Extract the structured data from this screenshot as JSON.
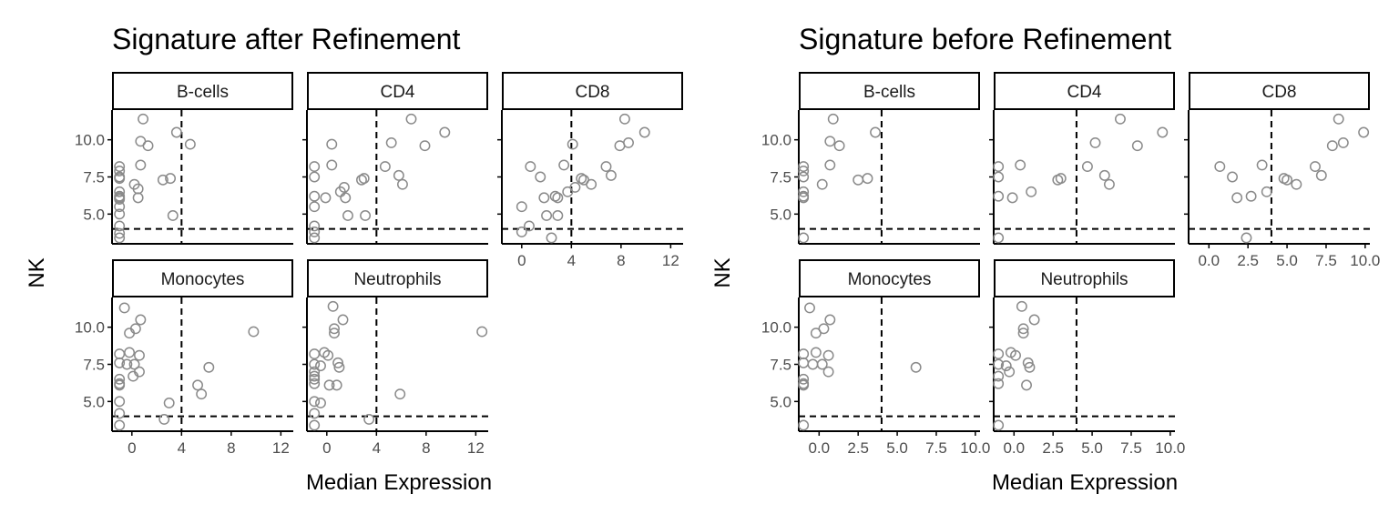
{
  "shared": {
    "ylabel": "NK",
    "xlabel": "Median Expression",
    "ylim": [
      3.0,
      12.0
    ],
    "yticks": [
      5.0,
      7.5,
      10.0
    ],
    "ytick_labels": [
      "5.0",
      "7.5",
      "10.0"
    ],
    "hline_y": 4,
    "vline_x": 4
  },
  "chart_data": [
    {
      "type": "scatter",
      "title": "Signature after Refinement",
      "xlabel": "Median Expression",
      "ylabel": "NK",
      "panels": [
        {
          "label": "B-cells",
          "xlim": [
            -1.6,
            13
          ],
          "points": [
            [
              -1,
              8.2
            ],
            [
              -1,
              7.9
            ],
            [
              -1,
              7.5
            ],
            [
              -1,
              7.4
            ],
            [
              -1,
              6.5
            ],
            [
              -1,
              6.2
            ],
            [
              -1,
              6.1
            ],
            [
              -1,
              6.0
            ],
            [
              -1,
              5.5
            ],
            [
              -1,
              5.0
            ],
            [
              -1,
              4.2
            ],
            [
              -1,
              3.7
            ],
            [
              -1,
              3.4
            ],
            [
              0.2,
              7.0
            ],
            [
              0.5,
              6.7
            ],
            [
              0.5,
              6.1
            ],
            [
              0.7,
              8.3
            ],
            [
              0.7,
              9.9
            ],
            [
              0.9,
              11.4
            ],
            [
              1.3,
              9.6
            ],
            [
              2.5,
              7.3
            ],
            [
              3.1,
              7.4
            ],
            [
              3.3,
              4.9
            ],
            [
              3.6,
              10.5
            ],
            [
              4.7,
              9.7
            ]
          ]
        },
        {
          "label": "CD4",
          "xlim": [
            -1.6,
            13
          ],
          "points": [
            [
              -1,
              8.2
            ],
            [
              -1,
              7.5
            ],
            [
              -1,
              6.2
            ],
            [
              -1,
              5.5
            ],
            [
              -1,
              4.2
            ],
            [
              -1,
              3.8
            ],
            [
              -1,
              3.4
            ],
            [
              -0.1,
              6.1
            ],
            [
              0.4,
              8.3
            ],
            [
              0.4,
              9.7
            ],
            [
              1.1,
              6.5
            ],
            [
              1.4,
              6.8
            ],
            [
              1.5,
              6.1
            ],
            [
              1.7,
              4.9
            ],
            [
              2.8,
              7.3
            ],
            [
              3,
              7.4
            ],
            [
              3.1,
              4.9
            ],
            [
              4.7,
              8.2
            ],
            [
              5.2,
              9.8
            ],
            [
              5.8,
              7.6
            ],
            [
              6.1,
              7.0
            ],
            [
              6.8,
              11.4
            ],
            [
              7.9,
              9.6
            ],
            [
              9.5,
              10.5
            ]
          ]
        },
        {
          "label": "CD8",
          "xlim": [
            -1.6,
            13
          ],
          "points": [
            [
              0,
              5.5
            ],
            [
              0,
              3.8
            ],
            [
              0.6,
              4.2
            ],
            [
              0.7,
              8.2
            ],
            [
              1.5,
              7.5
            ],
            [
              1.8,
              6.1
            ],
            [
              2,
              4.9
            ],
            [
              2.4,
              3.4
            ],
            [
              2.7,
              6.2
            ],
            [
              2.9,
              6.1
            ],
            [
              2.9,
              4.9
            ],
            [
              3.4,
              8.3
            ],
            [
              3.7,
              6.5
            ],
            [
              4.1,
              9.7
            ],
            [
              4.3,
              6.8
            ],
            [
              4.8,
              7.4
            ],
            [
              5,
              7.3
            ],
            [
              5.6,
              7.0
            ],
            [
              6.8,
              8.2
            ],
            [
              7.2,
              7.6
            ],
            [
              7.9,
              9.6
            ],
            [
              8.3,
              11.4
            ],
            [
              8.6,
              9.8
            ],
            [
              9.9,
              10.5
            ]
          ]
        },
        {
          "label": "Monocytes",
          "xlim": [
            -1.6,
            13
          ],
          "points": [
            [
              -1,
              8.2
            ],
            [
              -1,
              7.6
            ],
            [
              -1,
              6.5
            ],
            [
              -1,
              6.2
            ],
            [
              -1,
              6.1
            ],
            [
              -1,
              5.0
            ],
            [
              -1,
              4.2
            ],
            [
              -1,
              3.4
            ],
            [
              -0.6,
              11.3
            ],
            [
              -0.4,
              7.5
            ],
            [
              -0.2,
              9.6
            ],
            [
              -0.2,
              8.3
            ],
            [
              0.1,
              6.7
            ],
            [
              0.2,
              7.5
            ],
            [
              0.3,
              9.9
            ],
            [
              0.6,
              8.1
            ],
            [
              0.6,
              7.0
            ],
            [
              0.7,
              10.5
            ],
            [
              2.6,
              3.8
            ],
            [
              3,
              4.9
            ],
            [
              5.3,
              6.1
            ],
            [
              5.6,
              5.5
            ],
            [
              6.2,
              7.3
            ],
            [
              9.8,
              9.7
            ]
          ]
        },
        {
          "label": "Neutrophils",
          "xlim": [
            -1.6,
            13
          ],
          "points": [
            [
              -1,
              8.2
            ],
            [
              -1,
              7.5
            ],
            [
              -1,
              7.0
            ],
            [
              -1,
              6.7
            ],
            [
              -1,
              6.5
            ],
            [
              -1,
              6.2
            ],
            [
              -1,
              5.0
            ],
            [
              -1,
              4.2
            ],
            [
              -1,
              3.4
            ],
            [
              -0.5,
              7.4
            ],
            [
              -0.5,
              4.9
            ],
            [
              -0.2,
              8.3
            ],
            [
              0.1,
              8.1
            ],
            [
              0.2,
              6.1
            ],
            [
              0.5,
              11.4
            ],
            [
              0.6,
              9.9
            ],
            [
              0.6,
              9.6
            ],
            [
              0.8,
              6.1
            ],
            [
              0.9,
              7.6
            ],
            [
              1,
              7.3
            ],
            [
              1.3,
              10.5
            ],
            [
              3.4,
              3.8
            ],
            [
              5.9,
              5.5
            ],
            [
              12.5,
              9.7
            ]
          ]
        }
      ]
    },
    {
      "type": "scatter",
      "title": "Signature before Refinement",
      "xlabel": "Median Expression",
      "ylabel": "NK",
      "panels": [
        {
          "label": "B-cells",
          "xlim": [
            -1.3,
            10.3
          ],
          "points": [
            [
              -1,
              8.2
            ],
            [
              -1,
              7.9
            ],
            [
              -1,
              7.5
            ],
            [
              -1,
              6.5
            ],
            [
              -1,
              6.2
            ],
            [
              -1,
              6.1
            ],
            [
              -1,
              3.4
            ],
            [
              0.2,
              7.0
            ],
            [
              0.7,
              8.3
            ],
            [
              0.7,
              9.9
            ],
            [
              0.9,
              11.4
            ],
            [
              1.3,
              9.6
            ],
            [
              2.5,
              7.3
            ],
            [
              3.1,
              7.4
            ],
            [
              3.6,
              10.5
            ]
          ]
        },
        {
          "label": "CD4",
          "xlim": [
            -1.3,
            10.3
          ],
          "points": [
            [
              -1,
              8.2
            ],
            [
              -1,
              7.5
            ],
            [
              -1,
              6.2
            ],
            [
              -1,
              3.4
            ],
            [
              -0.1,
              6.1
            ],
            [
              0.4,
              8.3
            ],
            [
              1.1,
              6.5
            ],
            [
              2.8,
              7.3
            ],
            [
              3,
              7.4
            ],
            [
              4.7,
              8.2
            ],
            [
              5.2,
              9.8
            ],
            [
              5.8,
              7.6
            ],
            [
              6.1,
              7.0
            ],
            [
              6.8,
              11.4
            ],
            [
              7.9,
              9.6
            ],
            [
              9.5,
              10.5
            ]
          ]
        },
        {
          "label": "CD8",
          "xlim": [
            -1.3,
            10.3
          ],
          "xticks": [
            0,
            2.5,
            5,
            7.5,
            10
          ],
          "xtick_labels": [
            "0.0",
            "2.5",
            "5.0",
            "7.5",
            "10.0"
          ],
          "points": [
            [
              0.7,
              8.2
            ],
            [
              1.5,
              7.5
            ],
            [
              1.8,
              6.1
            ],
            [
              2.4,
              3.4
            ],
            [
              2.7,
              6.2
            ],
            [
              3.4,
              8.3
            ],
            [
              3.7,
              6.5
            ],
            [
              4.8,
              7.4
            ],
            [
              5,
              7.3
            ],
            [
              5.6,
              7.0
            ],
            [
              6.8,
              8.2
            ],
            [
              7.2,
              7.6
            ],
            [
              7.9,
              9.6
            ],
            [
              8.3,
              11.4
            ],
            [
              8.6,
              9.8
            ],
            [
              9.9,
              10.5
            ]
          ]
        },
        {
          "label": "Monocytes",
          "xlim": [
            -1.3,
            10.3
          ],
          "xticks": [
            0,
            2.5,
            5,
            7.5,
            10
          ],
          "xtick_labels": [
            "0.0",
            "2.5",
            "5.0",
            "7.5",
            "10.0"
          ],
          "points": [
            [
              -1,
              8.2
            ],
            [
              -1,
              7.6
            ],
            [
              -1,
              6.5
            ],
            [
              -1,
              6.2
            ],
            [
              -1,
              6.1
            ],
            [
              -1,
              3.4
            ],
            [
              -0.6,
              11.3
            ],
            [
              -0.4,
              7.5
            ],
            [
              -0.2,
              9.6
            ],
            [
              -0.2,
              8.3
            ],
            [
              0.2,
              7.5
            ],
            [
              0.3,
              9.9
            ],
            [
              0.6,
              8.1
            ],
            [
              0.6,
              7.0
            ],
            [
              0.7,
              10.5
            ],
            [
              6.2,
              7.3
            ]
          ]
        },
        {
          "label": "Neutrophils",
          "xlim": [
            -1.3,
            10.3
          ],
          "xticks": [
            0,
            2.5,
            5,
            7.5,
            10
          ],
          "xtick_labels": [
            "0.0",
            "2.5",
            "5.0",
            "7.5",
            "10.0"
          ],
          "points": [
            [
              -1,
              8.2
            ],
            [
              -1,
              7.5
            ],
            [
              -1,
              6.7
            ],
            [
              -1,
              6.2
            ],
            [
              -1,
              3.4
            ],
            [
              -0.5,
              7.4
            ],
            [
              -0.3,
              7.0
            ],
            [
              -0.2,
              8.3
            ],
            [
              0.1,
              8.1
            ],
            [
              0.5,
              11.4
            ],
            [
              0.6,
              9.9
            ],
            [
              0.6,
              9.6
            ],
            [
              0.8,
              6.1
            ],
            [
              0.9,
              7.6
            ],
            [
              1,
              7.3
            ],
            [
              1.3,
              10.5
            ]
          ]
        }
      ]
    }
  ],
  "afterXTicks": [
    0,
    4,
    8,
    12
  ],
  "afterXTickLabels": [
    "0",
    "4",
    "8",
    "12"
  ],
  "colors": {
    "point": "#8a8a8a",
    "line": "#000000",
    "text": "#1a1a1a",
    "tick": "#4d4d4d"
  }
}
